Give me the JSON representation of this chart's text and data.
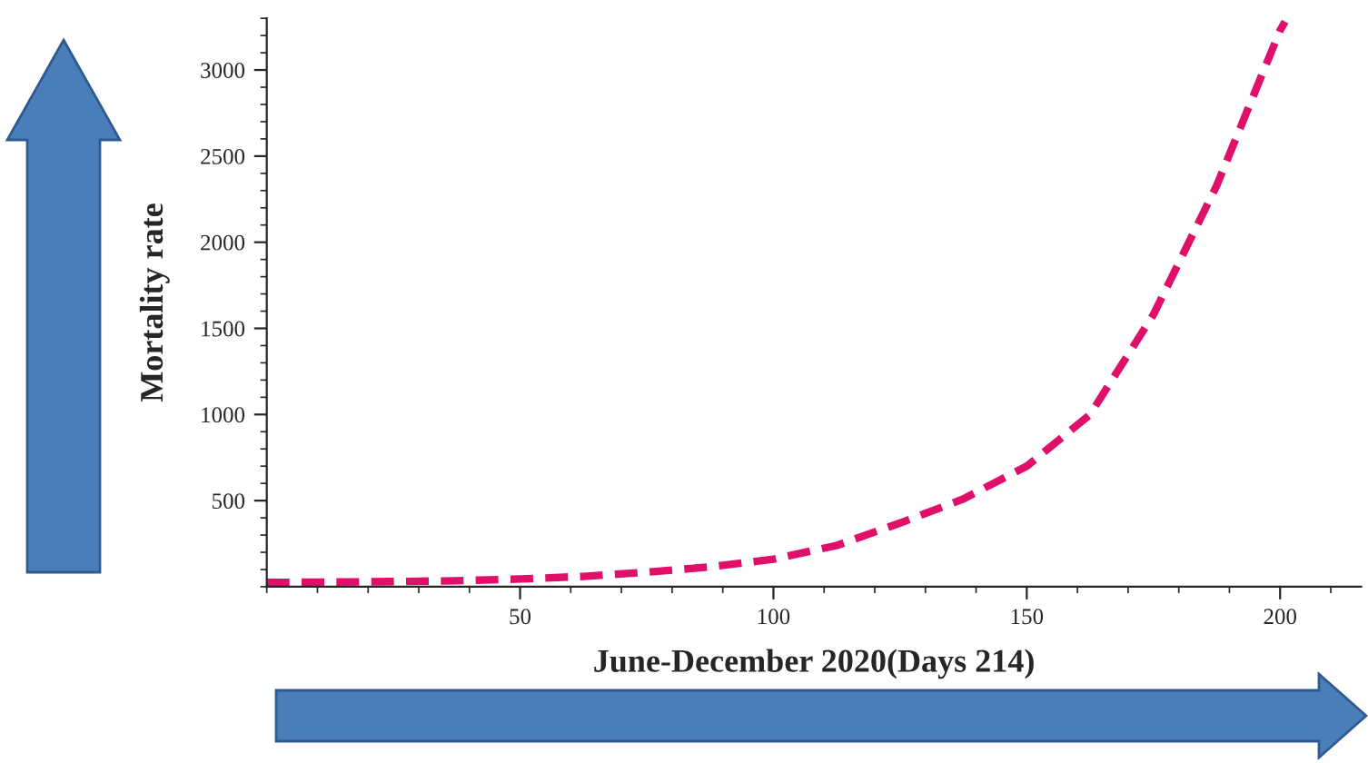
{
  "chart_data": {
    "type": "line",
    "xlabel": "June-December 2020(Days 214)",
    "ylabel": "Mortality rate",
    "x": [
      0,
      12.5,
      25,
      37.5,
      50,
      62.5,
      75,
      87.5,
      100,
      112.5,
      125,
      137.5,
      150,
      162.5,
      175,
      187.5,
      200,
      201
    ],
    "series": [
      {
        "color": "#e0106a",
        "values": [
          25,
          27,
          30,
          35,
          45,
          60,
          85,
          115,
          160,
          240,
          370,
          510,
          700,
          1000,
          1580,
          2330,
          3230,
          3280
        ]
      }
    ],
    "line_style": "dashed",
    "xlim": [
      0,
      216
    ],
    "ylim": [
      0,
      3300
    ],
    "xticks": [
      50,
      100,
      150,
      200
    ],
    "yticks": [
      500,
      1000,
      1500,
      2000,
      2500,
      3000
    ]
  }
}
